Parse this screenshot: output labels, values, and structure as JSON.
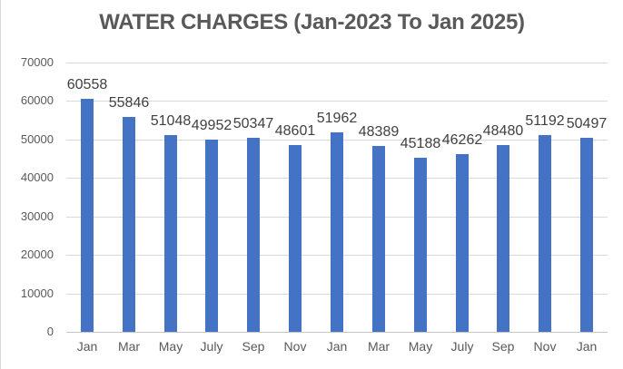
{
  "chart_data": {
    "type": "bar",
    "title": "WATER CHARGES (Jan-2023 To Jan 2025)",
    "categories": [
      "Jan",
      "Mar",
      "May",
      "July",
      "Sep",
      "Nov",
      "Jan",
      "Mar",
      "May",
      "July",
      "Sep",
      "Nov",
      "Jan"
    ],
    "values": [
      60558,
      55846,
      51048,
      49952,
      50347,
      48601,
      51962,
      48389,
      45188,
      46262,
      48480,
      51192,
      50497
    ],
    "xlabel": "",
    "ylabel": "",
    "ylim": [
      0,
      70000
    ],
    "ytick_step": 10000,
    "ytick_labels": [
      "0",
      "10000",
      "20000",
      "30000",
      "40000",
      "50000",
      "60000",
      "70000"
    ],
    "grid": "horizontal",
    "legend_position": "none",
    "data_labels": "outside-end",
    "colors": {
      "bar": "#4472C4",
      "gridline": "#D9D9D9",
      "axis_line": "#C6C6C6",
      "axis_text": "#595959",
      "title_text": "#595959",
      "data_label_text": "#404040",
      "background": "#FFFFFF"
    }
  }
}
